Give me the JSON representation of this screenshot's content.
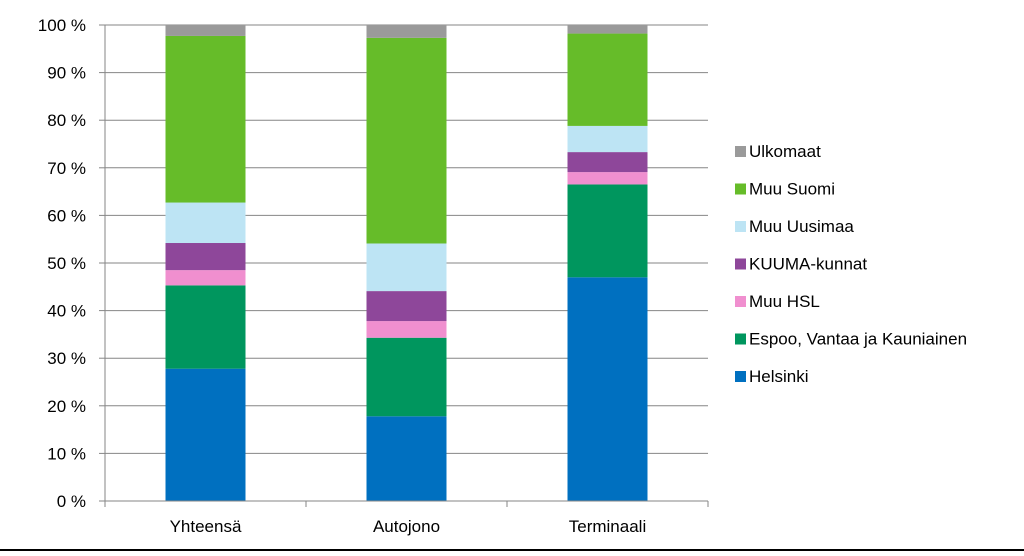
{
  "chart_data": {
    "type": "bar",
    "stacked": true,
    "categories": [
      "Yhteensä",
      "Autojono",
      "Terminaali"
    ],
    "yticks": [
      "0 %",
      "10 %",
      "20 %",
      "30 %",
      "40 %",
      "50 %",
      "60 %",
      "70 %",
      "80 %",
      "90 %",
      "100 %"
    ],
    "ylim": [
      0,
      100
    ],
    "legend_position": "right",
    "series": [
      {
        "name": "Helsinki",
        "color": "#0070C0",
        "values": [
          27.8,
          17.8,
          47.0
        ]
      },
      {
        "name": "Espoo, Vantaa ja Kauniainen",
        "color": "#00965E",
        "values": [
          17.5,
          16.5,
          19.5
        ]
      },
      {
        "name": "Muu HSL",
        "color": "#F08FCF",
        "values": [
          3.2,
          3.5,
          2.6
        ]
      },
      {
        "name": "KUUMA-kunnat",
        "color": "#8E479A",
        "values": [
          5.7,
          6.3,
          4.2
        ]
      },
      {
        "name": "Muu Uusimaa",
        "color": "#BDE4F4",
        "values": [
          8.5,
          10.0,
          5.5
        ]
      },
      {
        "name": "Muu Suomi",
        "color": "#66BC29",
        "values": [
          35.0,
          43.2,
          19.4
        ]
      },
      {
        "name": "Ulkomaat",
        "color": "#9A9A9A",
        "values": [
          2.3,
          2.7,
          1.8
        ]
      }
    ]
  }
}
